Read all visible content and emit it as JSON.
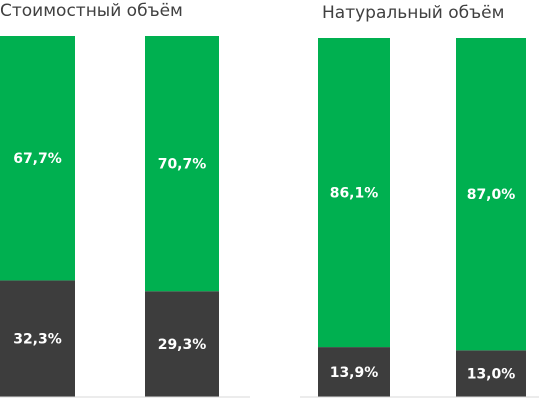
{
  "chart_data": [
    {
      "type": "bar",
      "stacked": true,
      "title": "Стоимостный объём",
      "xlabel": "",
      "ylabel": "",
      "ylim": [
        0,
        100
      ],
      "categories": [
        "",
        ""
      ],
      "series": [
        {
          "values": [
            32.3,
            29.3
          ],
          "labels": [
            "32,3%",
            "29,3%"
          ],
          "color": "#3d3d3d"
        },
        {
          "values": [
            67.7,
            70.7
          ],
          "labels": [
            "67,7%",
            "70,7%"
          ],
          "color": "#00b050"
        }
      ]
    },
    {
      "type": "bar",
      "stacked": true,
      "title": "Натуральный объём",
      "xlabel": "",
      "ylabel": "",
      "ylim": [
        0,
        100
      ],
      "categories": [
        "",
        ""
      ],
      "series": [
        {
          "values": [
            13.9,
            13.0
          ],
          "labels": [
            "13,9%",
            "13,0%"
          ],
          "color": "#3d3d3d"
        },
        {
          "values": [
            86.1,
            87.0
          ],
          "labels": [
            "86,1%",
            "87,0%"
          ],
          "color": "#00b050"
        }
      ]
    }
  ],
  "colors": {
    "top_segment": "#00b050",
    "bottom_segment": "#3d3d3d",
    "label_text": "#ffffff",
    "title_text": "#404040",
    "axis_line": "#d9d9d9"
  }
}
